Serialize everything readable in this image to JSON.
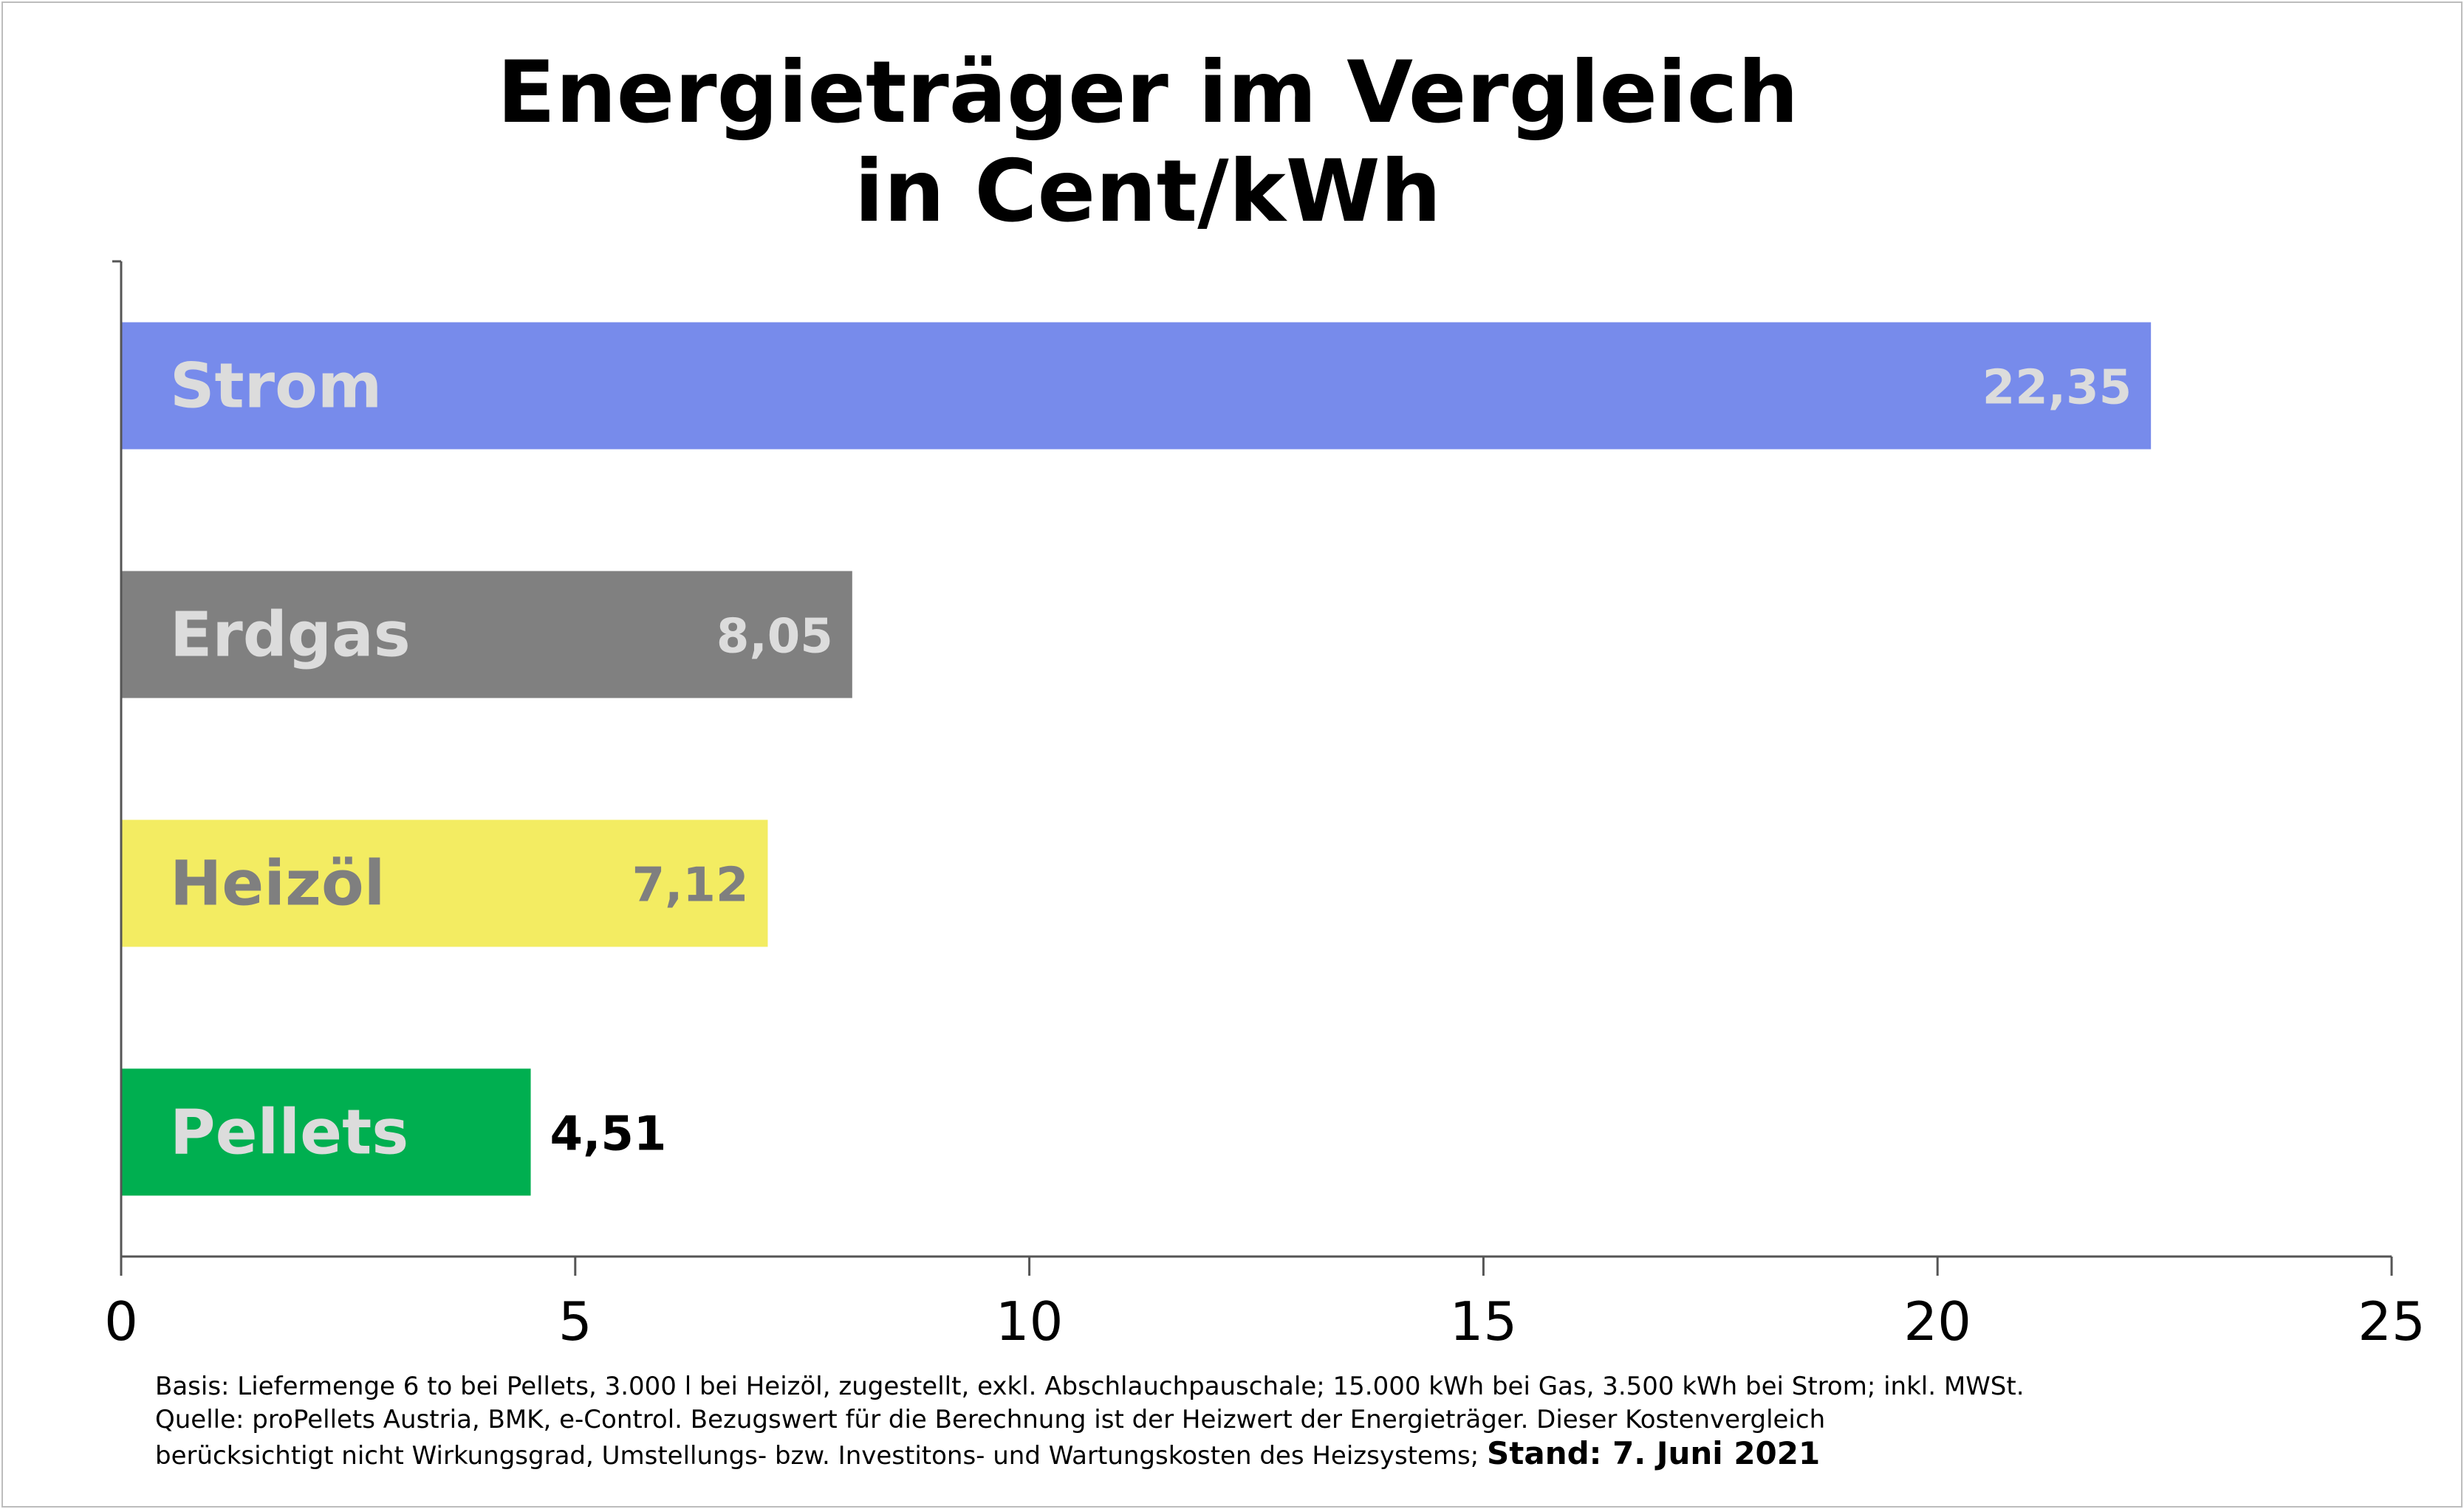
{
  "chart_data": {
    "type": "bar",
    "orientation": "horizontal",
    "title": "Energieträger im Vergleich",
    "subtitle": "in Cent/kWh",
    "categories": [
      "Strom",
      "Erdgas",
      "Heizöl",
      "Pellets"
    ],
    "values": [
      22.35,
      8.05,
      7.12,
      4.51
    ],
    "value_labels": [
      "22,35",
      "8,05",
      "7,12",
      "4,51"
    ],
    "colors": [
      "#778beb",
      "#808080",
      "#f3ec62",
      "#00af50"
    ],
    "category_label_colors": [
      "#dcdcdc",
      "#dcdcdc",
      "#7f7f7f",
      "#dcdcdc"
    ],
    "value_label_colors": [
      "#dcdcdc",
      "#dcdcdc",
      "#7f7f7f",
      "#000000"
    ],
    "xlim": [
      0,
      25
    ],
    "xticks": [
      0,
      5,
      10,
      15,
      20,
      25
    ],
    "xlabel": "",
    "ylabel": "",
    "grid": false,
    "legend": "none"
  },
  "footnote": {
    "line1": "Basis: Liefermenge 6 to bei Pellets, 3.000 l bei Heizöl, zugestellt, exkl. Abschlauchpauschale; 15.000 kWh bei Gas, 3.500 kWh bei Strom; inkl. MWSt.",
    "line2": "Quelle: proPellets Austria, BMK, e-Control. Bezugswert für die Berechnung ist der Heizwert der Energieträger. Dieser Kostenvergleich",
    "line3": "berücksichtigt nicht Wirkungsgrad, Umstellungs- bzw. Investitons- und Wartungskosten des Heizsystems;",
    "stand": "Stand: 7. Juni 2021"
  }
}
